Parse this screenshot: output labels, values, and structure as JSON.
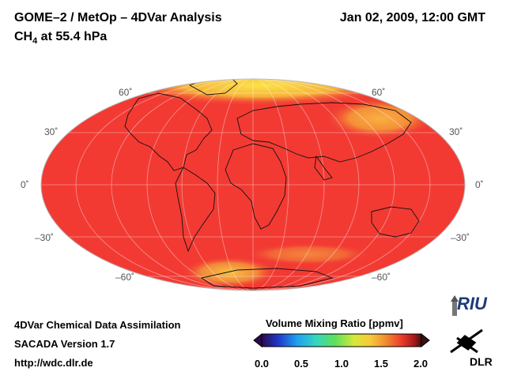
{
  "header": {
    "title": "GOME–2 / MetOp – 4DVar Analysis",
    "species_main": "CH",
    "species_sub": "4",
    "species_rest": " at 55.4 hPa",
    "datetime": "Jan 02, 2009, 12:00 GMT"
  },
  "map": {
    "projection": "Mollweide",
    "lat_labels": {
      "n60_left": "60˚",
      "n60_right": "60˚",
      "n30_left": "30˚",
      "n30_right": "30˚",
      "eq_left": "0˚",
      "eq_right": "0˚",
      "s30_left": "–30˚",
      "s30_right": "–30˚",
      "s60_left": "–60˚",
      "s60_right": "–60˚"
    },
    "colors": {
      "background_field": "#f23a33",
      "high_lat_band": "#f6c23c",
      "land_outline": "#111111"
    }
  },
  "colorbar": {
    "title": "Volume Mixing Ratio [ppmv]",
    "ticks": [
      "0.0",
      "0.5",
      "1.0",
      "1.5",
      "2.0"
    ],
    "range": [
      0.0,
      2.0
    ],
    "colors": [
      "#2a0a4a",
      "#2035c8",
      "#1ea0f0",
      "#35d6c0",
      "#5ee05a",
      "#d8e83a",
      "#f7c93a",
      "#f08a2e",
      "#ea3a2a",
      "#a01818",
      "#3a1010"
    ]
  },
  "footer": {
    "line1": "4DVar Chemical Data Assimilation",
    "line2": "SACADA Version 1.7",
    "line3": "http://wdc.dlr.de"
  },
  "logos": {
    "riu": "RIU",
    "dlr": "DLR"
  }
}
